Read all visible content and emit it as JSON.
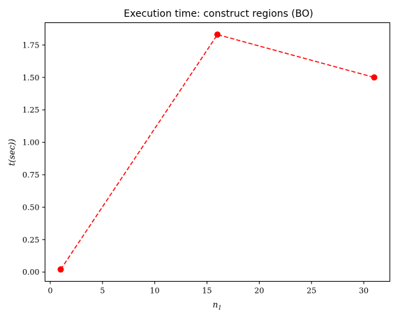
{
  "chart_data": {
    "type": "line",
    "title": "Execution time: construct regions (BO)",
    "xlabel": "n",
    "xlabel_subscript": "1",
    "ylabel": "t(sec))",
    "xlim": [
      -0.5,
      32.5
    ],
    "ylim": [
      -0.0715,
      1.9215
    ],
    "xticks": [
      0,
      5,
      10,
      15,
      20,
      25,
      30
    ],
    "xtick_labels": [
      "0",
      "5",
      "10",
      "15",
      "20",
      "25",
      "30"
    ],
    "yticks": [
      0.0,
      0.25,
      0.5,
      0.75,
      1.0,
      1.25,
      1.5,
      1.75
    ],
    "ytick_labels": [
      "0.00",
      "0.25",
      "0.50",
      "0.75",
      "1.00",
      "1.25",
      "1.50",
      "1.75"
    ],
    "grid": false,
    "series": [
      {
        "x": [
          1,
          16,
          31
        ],
        "y": [
          0.02,
          1.83,
          1.5
        ],
        "color": "#ff0000",
        "line_style": "dashed",
        "marker": "circle"
      }
    ]
  }
}
